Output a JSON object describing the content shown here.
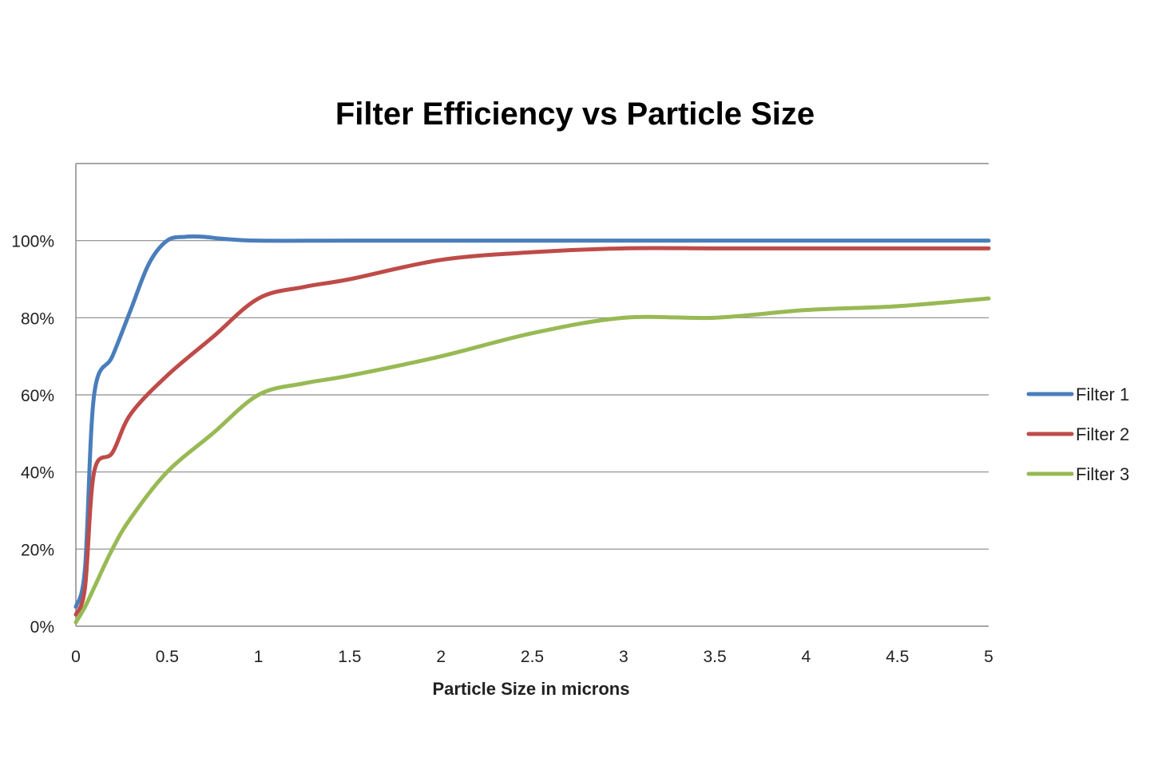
{
  "chart_data": {
    "type": "line",
    "title": "Filter Efficiency vs Particle Size",
    "xlabel": "Particle Size in microns",
    "ylabel": "",
    "xlim": [
      0,
      5
    ],
    "ylim": [
      0,
      120
    ],
    "x_ticks": [
      "0",
      "0.5",
      "1",
      "1.5",
      "2",
      "2.5",
      "3",
      "3.5",
      "4",
      "4.5",
      "5"
    ],
    "y_ticks": [
      "0%",
      "20%",
      "40%",
      "60%",
      "80%",
      "100%"
    ],
    "grid": true,
    "legend": "right",
    "series": [
      {
        "name": "Filter 1",
        "color": "#4a7ebb",
        "points": [
          [
            0,
            5
          ],
          [
            0.05,
            15
          ],
          [
            0.1,
            60
          ],
          [
            0.2,
            70
          ],
          [
            0.3,
            82
          ],
          [
            0.4,
            94
          ],
          [
            0.5,
            100
          ],
          [
            0.6,
            101
          ],
          [
            0.7,
            101
          ],
          [
            0.8,
            100.5
          ],
          [
            1,
            100
          ],
          [
            1.5,
            100
          ],
          [
            2,
            100
          ],
          [
            2.5,
            100
          ],
          [
            3,
            100
          ],
          [
            3.5,
            100
          ],
          [
            4,
            100
          ],
          [
            4.5,
            100
          ],
          [
            5,
            100
          ]
        ]
      },
      {
        "name": "Filter 2",
        "color": "#be4b48",
        "points": [
          [
            0,
            3
          ],
          [
            0.05,
            10
          ],
          [
            0.1,
            40
          ],
          [
            0.2,
            45
          ],
          [
            0.3,
            55
          ],
          [
            0.5,
            65
          ],
          [
            0.75,
            75
          ],
          [
            1,
            85
          ],
          [
            1.25,
            88
          ],
          [
            1.5,
            90
          ],
          [
            2,
            95
          ],
          [
            2.5,
            97
          ],
          [
            3,
            98
          ],
          [
            3.5,
            98
          ],
          [
            4,
            98
          ],
          [
            4.5,
            98
          ],
          [
            5,
            98
          ]
        ]
      },
      {
        "name": "Filter 3",
        "color": "#98b954",
        "points": [
          [
            0,
            1
          ],
          [
            0.05,
            5
          ],
          [
            0.1,
            10
          ],
          [
            0.2,
            20
          ],
          [
            0.3,
            28
          ],
          [
            0.5,
            40
          ],
          [
            0.75,
            50
          ],
          [
            1,
            60
          ],
          [
            1.25,
            63
          ],
          [
            1.5,
            65
          ],
          [
            2,
            70
          ],
          [
            2.5,
            76
          ],
          [
            3,
            80
          ],
          [
            3.5,
            80
          ],
          [
            4,
            82
          ],
          [
            4.5,
            83
          ],
          [
            5,
            85
          ]
        ]
      }
    ]
  }
}
